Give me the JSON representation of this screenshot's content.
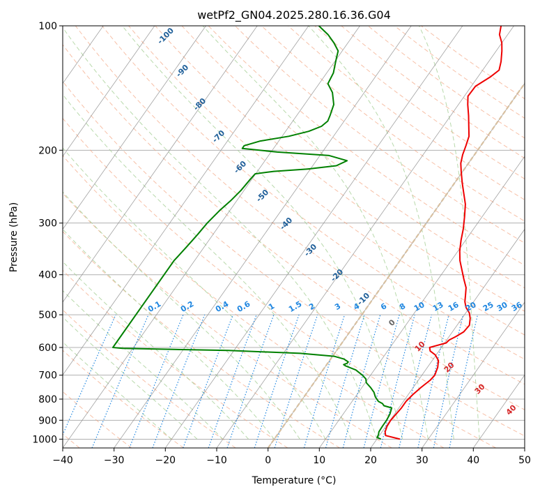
{
  "chart_data": {
    "type": "line",
    "subtype": "skew-t log-p diagram",
    "title": "wetPf2_GN04.2025.280.16.36.G04",
    "xlabel": "Temperature (°C)",
    "ylabel": "Pressure (hPa)",
    "xlim": [
      -40,
      50
    ],
    "ylim": [
      1050,
      100
    ],
    "yscale": "log",
    "x_ticks": [
      -40,
      -30,
      -20,
      -10,
      0,
      10,
      20,
      30,
      40,
      50
    ],
    "x_tick_labels": [
      "−40",
      "−30",
      "−20",
      "−10",
      "0",
      "10",
      "20",
      "30",
      "40",
      "50"
    ],
    "y_ticks": [
      100,
      200,
      300,
      400,
      500,
      600,
      700,
      800,
      900,
      1000
    ],
    "y_tick_labels": [
      "100",
      "200",
      "300",
      "400",
      "500",
      "600",
      "700",
      "800",
      "900",
      "1000"
    ],
    "grid": true,
    "colors": {
      "temperature": "#ee0000",
      "dewpoint": "#008000",
      "grid": "#b0b0b0",
      "dry_adiabat": "#f4a582",
      "moist_adiabat": "#a6d096",
      "mixing_ratio": "#1f86e0",
      "isotherm_label": "#1f5f99",
      "dry_adiabat_label": "#d62728",
      "zero_label": "#666666",
      "line_0c": "#d8c0a0"
    },
    "series": [
      {
        "role": "temperature",
        "points": [
          [
            1000,
            24.5
          ],
          [
            980,
            21.2
          ],
          [
            960,
            20.6
          ],
          [
            930,
            20.2
          ],
          [
            900,
            20.1
          ],
          [
            870,
            20.3
          ],
          [
            840,
            20.5
          ],
          [
            810,
            20.5
          ],
          [
            780,
            20.9
          ],
          [
            750,
            21.5
          ],
          [
            720,
            22.3
          ],
          [
            700,
            22.5
          ],
          [
            670,
            22.0
          ],
          [
            645,
            21.2
          ],
          [
            625,
            19.8
          ],
          [
            612,
            18.3
          ],
          [
            600,
            17.7
          ],
          [
            595,
            18.5
          ],
          [
            585,
            20.3
          ],
          [
            575,
            20.5
          ],
          [
            565,
            21.3
          ],
          [
            550,
            22.2
          ],
          [
            530,
            22.4
          ],
          [
            510,
            21.6
          ],
          [
            495,
            20.7
          ],
          [
            480,
            19.3
          ],
          [
            465,
            18.3
          ],
          [
            450,
            17.6
          ],
          [
            430,
            16.6
          ],
          [
            410,
            15.0
          ],
          [
            390,
            13.4
          ],
          [
            370,
            11.7
          ],
          [
            350,
            10.3
          ],
          [
            330,
            9.1
          ],
          [
            310,
            8.0
          ],
          [
            290,
            6.6
          ],
          [
            270,
            5.0
          ],
          [
            255,
            3.3
          ],
          [
            240,
            1.5
          ],
          [
            225,
            -0.3
          ],
          [
            215,
            -1.5
          ],
          [
            205,
            -2.3
          ],
          [
            195,
            -2.9
          ],
          [
            185,
            -3.6
          ],
          [
            175,
            -5.0
          ],
          [
            165,
            -6.5
          ],
          [
            155,
            -8.2
          ],
          [
            148,
            -9.3
          ],
          [
            140,
            -9.2
          ],
          [
            133,
            -7.6
          ],
          [
            128,
            -6.8
          ],
          [
            122,
            -7.6
          ],
          [
            115,
            -8.9
          ],
          [
            110,
            -10.0
          ],
          [
            105,
            -11.6
          ],
          [
            100,
            -12.5
          ]
        ]
      },
      {
        "role": "dewpoint",
        "points": [
          [
            1000,
            20.8
          ],
          [
            990,
            19.8
          ],
          [
            975,
            19.7
          ],
          [
            960,
            19.4
          ],
          [
            930,
            19.3
          ],
          [
            900,
            19.3
          ],
          [
            870,
            19.1
          ],
          [
            840,
            18.6
          ],
          [
            830,
            16.8
          ],
          [
            820,
            16.2
          ],
          [
            810,
            15.1
          ],
          [
            790,
            13.9
          ],
          [
            770,
            13.0
          ],
          [
            750,
            11.7
          ],
          [
            730,
            10.2
          ],
          [
            715,
            9.6
          ],
          [
            700,
            8.4
          ],
          [
            680,
            6.4
          ],
          [
            665,
            3.9
          ],
          [
            660,
            3.3
          ],
          [
            655,
            3.8
          ],
          [
            650,
            3.8
          ],
          [
            640,
            2.6
          ],
          [
            630,
            0.3
          ],
          [
            620,
            -6.7
          ],
          [
            610,
            -21.1
          ],
          [
            603,
            -42.0
          ],
          [
            600,
            -44.0
          ],
          [
            370,
            -44.0
          ],
          [
            360,
            -43.8
          ],
          [
            340,
            -43.4
          ],
          [
            320,
            -43.0
          ],
          [
            300,
            -42.7
          ],
          [
            280,
            -42.0
          ],
          [
            265,
            -41.2
          ],
          [
            250,
            -40.6
          ],
          [
            235,
            -40.3
          ],
          [
            228,
            -40.1
          ],
          [
            225,
            -36.8
          ],
          [
            222,
            -30.5
          ],
          [
            218,
            -25.4
          ],
          [
            212,
            -24.0
          ],
          [
            206,
            -28.2
          ],
          [
            202,
            -38.8
          ],
          [
            198,
            -46.1
          ],
          [
            195,
            -46.1
          ],
          [
            190,
            -43.6
          ],
          [
            185,
            -38.7
          ],
          [
            180,
            -35.5
          ],
          [
            175,
            -33.7
          ],
          [
            170,
            -33.2
          ],
          [
            165,
            -33.5
          ],
          [
            155,
            -34.3
          ],
          [
            145,
            -36.2
          ],
          [
            138,
            -38.3
          ],
          [
            130,
            -38.7
          ],
          [
            125,
            -39.4
          ],
          [
            120,
            -40.1
          ],
          [
            115,
            -40.8
          ],
          [
            110,
            -42.7
          ],
          [
            105,
            -45.0
          ],
          [
            100,
            -48.0
          ]
        ]
      }
    ],
    "isotherm_labels": [
      "-100",
      "-90",
      "-80",
      "-70",
      "-60",
      "-50",
      "-40",
      "-30",
      "-20",
      "-10"
    ],
    "mixing_ratio_labels": [
      "0.1",
      "0.2",
      "0.4",
      "0.6",
      "1",
      "1.5",
      "2",
      "3",
      "4",
      "6",
      "8",
      "10",
      "13",
      "16",
      "20",
      "25",
      "30",
      "36"
    ],
    "mixing_ratio_values": [
      0.1,
      0.2,
      0.4,
      0.6,
      1,
      1.5,
      2,
      3,
      4,
      6,
      8,
      10,
      13,
      16,
      20,
      25,
      30,
      36
    ],
    "dry_adiabat_labels": [
      "10",
      "20",
      "30",
      "40"
    ],
    "freezing_label": "0"
  }
}
